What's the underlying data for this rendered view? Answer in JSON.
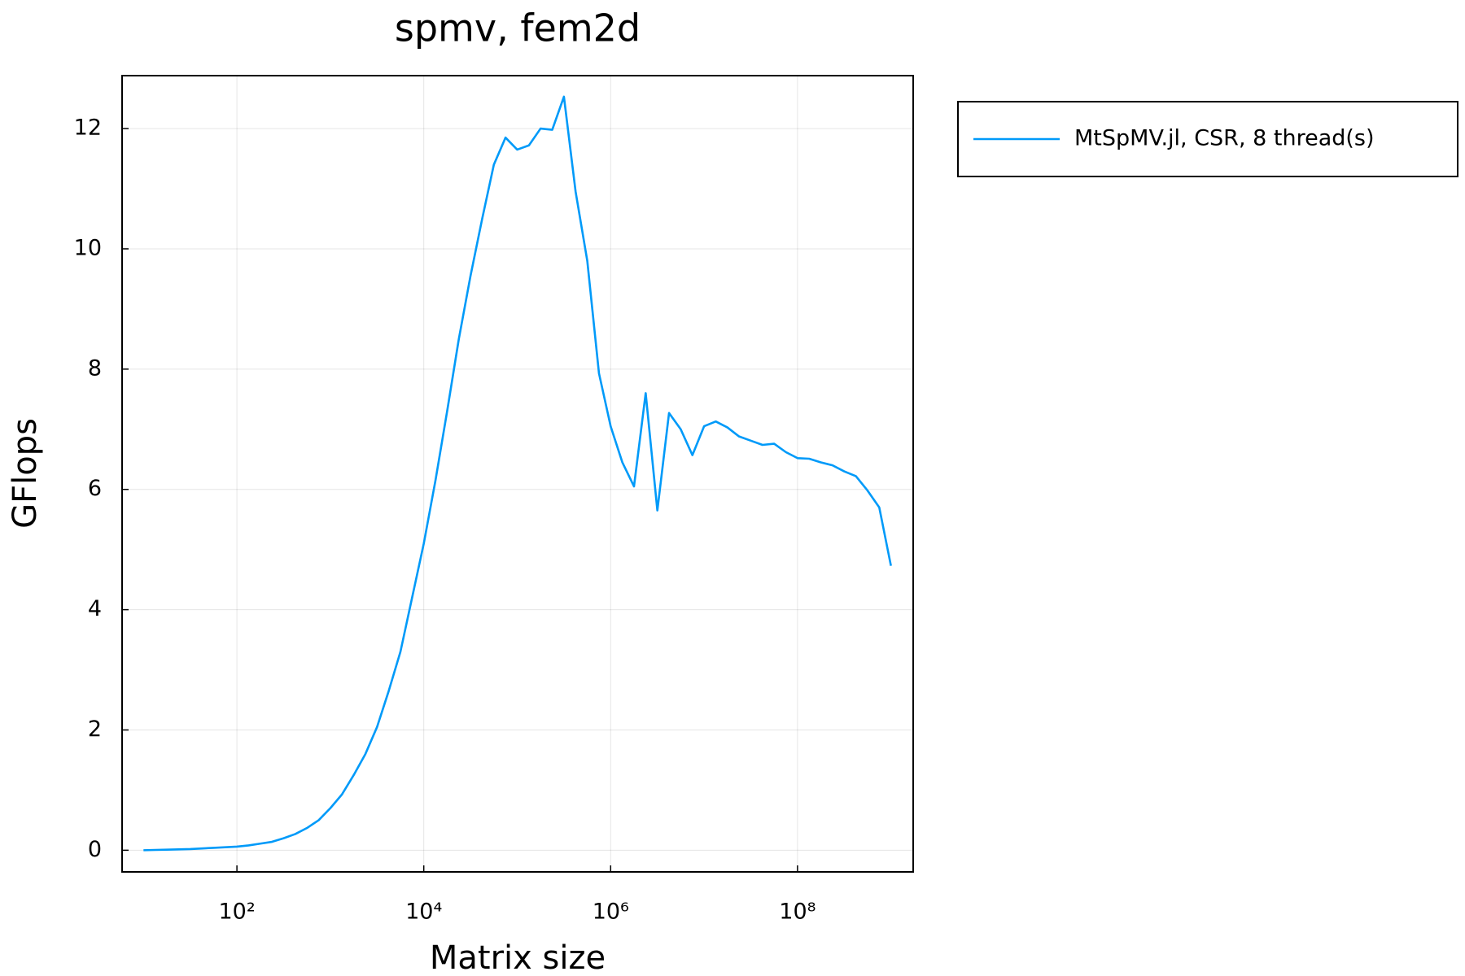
{
  "chart_data": {
    "type": "line",
    "title": "spmv, fem2d",
    "xlabel": "Matrix size",
    "ylabel": "GFlops",
    "xscale": "log",
    "grid": true,
    "legend": "outer-top-right",
    "xlim": [
      5.9,
      1730000000
    ],
    "ylim": [
      -0.36,
      12.88
    ],
    "xticks": [
      {
        "value": 100,
        "label": "10²"
      },
      {
        "value": 10000,
        "label": "10⁴"
      },
      {
        "value": 1000000,
        "label": "10⁶"
      },
      {
        "value": 100000000,
        "label": "10⁸"
      }
    ],
    "yticks": [
      0,
      2,
      4,
      6,
      8,
      10,
      12
    ],
    "x": [
      10,
      13.34,
      17.78,
      23.71,
      31.62,
      42.17,
      56.23,
      74.99,
      100,
      133.4,
      177.8,
      237.1,
      316.2,
      421.7,
      562.3,
      749.9,
      1000,
      1334,
      1778,
      2371,
      3162,
      4217,
      5623,
      7499,
      10000,
      13340,
      17780,
      23710,
      31620,
      42170,
      56230,
      74990,
      100000,
      133400,
      177800,
      237100,
      316200,
      421700,
      562300,
      749900,
      1000000,
      1334000,
      1778000,
      2371000,
      3162000,
      4217000,
      5623000,
      7499000,
      10000000,
      13340000,
      17780000,
      23710000,
      31620000,
      42170000,
      56230000,
      74990000,
      100000000,
      133400000,
      177800000,
      237100000,
      316200000,
      421700000,
      562300000,
      749900000,
      1000000000
    ],
    "series": [
      {
        "name": "MtSpMV.jl, CSR, 8 thread(s)",
        "color": "#009af9",
        "values": [
          0,
          0.005,
          0.01,
          0.015,
          0.02,
          0.03,
          0.04,
          0.05,
          0.06,
          0.08,
          0.11,
          0.14,
          0.2,
          0.27,
          0.37,
          0.5,
          0.7,
          0.93,
          1.25,
          1.6,
          2.05,
          2.65,
          3.3,
          4.2,
          5.1,
          6.15,
          7.3,
          8.5,
          9.55,
          10.5,
          11.4,
          11.85,
          11.65,
          11.72,
          12.0,
          11.98,
          12.53,
          10.95,
          9.8,
          7.93,
          7.05,
          6.45,
          6.05,
          7.6,
          5.65,
          7.27,
          7.0,
          6.57,
          7.05,
          7.13,
          7.03,
          6.88,
          6.81,
          6.74,
          6.76,
          6.62,
          6.52,
          6.51,
          6.45,
          6.4,
          6.3,
          6.22,
          5.98,
          5.7,
          4.73
        ]
      }
    ]
  }
}
